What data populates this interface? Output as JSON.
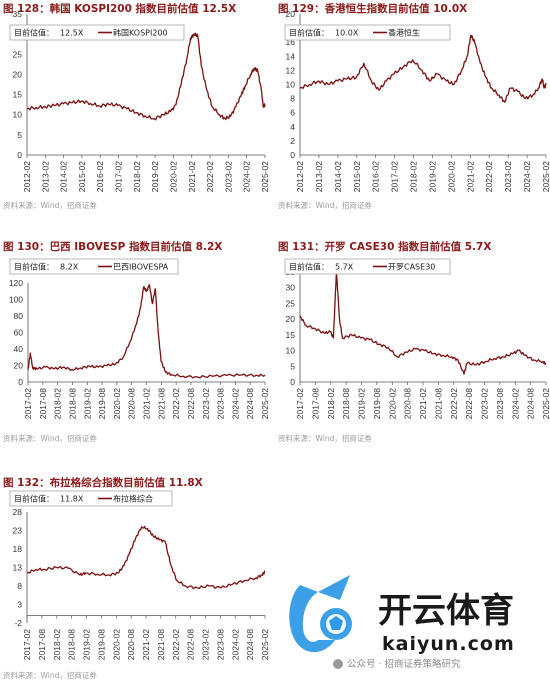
{
  "chart_data": [
    {
      "type": "line",
      "title": "图 128：韩国 KOSPI200 指数目前估值 12.5X",
      "source": "资料来源：Wind，招商证券",
      "annotation": {
        "label": "目前估值：",
        "value": "12.5X"
      },
      "series": [
        {
          "name": "韩国KOSPI200",
          "color": "#7b1010",
          "points": [
            [
              2012.0,
              11.5
            ],
            [
              2012.5,
              11.8
            ],
            [
              2013.0,
              12.0
            ],
            [
              2013.5,
              12.3
            ],
            [
              2014.0,
              12.7
            ],
            [
              2014.5,
              13.0
            ],
            [
              2015.0,
              13.4
            ],
            [
              2015.5,
              12.8
            ],
            [
              2016.0,
              12.2
            ],
            [
              2016.5,
              12.6
            ],
            [
              2017.0,
              12.3
            ],
            [
              2017.5,
              11.5
            ],
            [
              2018.0,
              10.5
            ],
            [
              2018.5,
              9.7
            ],
            [
              2019.0,
              9.0
            ],
            [
              2019.5,
              10.0
            ],
            [
              2019.9,
              10.8
            ],
            [
              2020.2,
              12.5
            ],
            [
              2020.5,
              18.0
            ],
            [
              2020.8,
              24.0
            ],
            [
              2021.0,
              29.0
            ],
            [
              2021.2,
              30.0
            ],
            [
              2021.4,
              29.5
            ],
            [
              2021.6,
              22.0
            ],
            [
              2021.9,
              16.0
            ],
            [
              2022.2,
              12.0
            ],
            [
              2022.6,
              10.0
            ],
            [
              2022.9,
              9.0
            ],
            [
              2023.2,
              9.6
            ],
            [
              2023.5,
              12.0
            ],
            [
              2023.8,
              15.0
            ],
            [
              2024.0,
              17.0
            ],
            [
              2024.3,
              20.0
            ],
            [
              2024.5,
              21.5
            ],
            [
              2024.7,
              21.0
            ],
            [
              2024.9,
              16.0
            ],
            [
              2025.0,
              12.0
            ],
            [
              2025.1,
              12.5
            ]
          ]
        }
      ],
      "x_ticks": [
        "2012-02",
        "2013-02",
        "2014-02",
        "2015-02",
        "2016-02",
        "2017-02",
        "2018-02",
        "2019-02",
        "2020-02",
        "2021-02",
        "2022-02",
        "2023-02",
        "2024-02",
        "2025-02"
      ],
      "xlim": [
        2012.0,
        2025.1
      ],
      "ylim": [
        0,
        35
      ],
      "y_ticks": [
        0,
        5,
        10,
        15,
        20,
        25,
        30,
        35
      ]
    },
    {
      "type": "line",
      "title": "图 129：香港恒生指数目前估值 10.0X",
      "source": "资料来源：Wind，招商证券",
      "annotation": {
        "label": "目前估值：",
        "value": "10.0X"
      },
      "series": [
        {
          "name": "香港恒生",
          "color": "#7b1010",
          "points": [
            [
              2012.0,
              9.5
            ],
            [
              2012.5,
              10.0
            ],
            [
              2013.0,
              10.5
            ],
            [
              2013.5,
              10.0
            ],
            [
              2014.0,
              10.5
            ],
            [
              2014.5,
              10.8
            ],
            [
              2015.0,
              11.0
            ],
            [
              2015.4,
              13.0
            ],
            [
              2015.8,
              10.5
            ],
            [
              2016.2,
              9.2
            ],
            [
              2016.6,
              10.5
            ],
            [
              2017.0,
              11.5
            ],
            [
              2017.5,
              12.5
            ],
            [
              2018.0,
              13.5
            ],
            [
              2018.5,
              12.0
            ],
            [
              2018.9,
              10.5
            ],
            [
              2019.3,
              11.5
            ],
            [
              2019.8,
              10.5
            ],
            [
              2020.2,
              10.0
            ],
            [
              2020.6,
              12.0
            ],
            [
              2020.9,
              14.0
            ],
            [
              2021.1,
              17.0
            ],
            [
              2021.3,
              16.0
            ],
            [
              2021.6,
              13.0
            ],
            [
              2021.9,
              11.0
            ],
            [
              2022.2,
              9.5
            ],
            [
              2022.6,
              8.5
            ],
            [
              2022.9,
              7.5
            ],
            [
              2023.2,
              9.5
            ],
            [
              2023.6,
              9.0
            ],
            [
              2024.0,
              8.0
            ],
            [
              2024.4,
              8.5
            ],
            [
              2024.7,
              9.5
            ],
            [
              2024.9,
              10.8
            ],
            [
              2025.0,
              9.5
            ],
            [
              2025.1,
              10.0
            ]
          ]
        }
      ],
      "x_ticks": [
        "2012-02",
        "2013-02",
        "2014-02",
        "2015-02",
        "2016-02",
        "2017-02",
        "2018-02",
        "2019-02",
        "2020-02",
        "2021-02",
        "2022-02",
        "2023-02",
        "2024-02",
        "2025-02"
      ],
      "xlim": [
        2012.0,
        2025.1
      ],
      "ylim": [
        0,
        20
      ],
      "y_ticks": [
        0,
        2,
        4,
        6,
        8,
        10,
        12,
        14,
        16,
        18,
        20
      ]
    },
    {
      "type": "line",
      "title": "图 130：巴西 IBOVESP 指数目前估值 8.2X",
      "source": "资料来源：Wind，招商证券",
      "annotation": {
        "label": "目前估值：",
        "value": "8.2X"
      },
      "series": [
        {
          "name": "巴西IBOVESPA",
          "color": "#7b1010",
          "points": [
            [
              2017.0,
              15.0
            ],
            [
              2017.08,
              35.0
            ],
            [
              2017.16,
              17.0
            ],
            [
              2017.3,
              16.0
            ],
            [
              2017.6,
              18.0
            ],
            [
              2017.9,
              16.0
            ],
            [
              2018.2,
              18.0
            ],
            [
              2018.5,
              15.0
            ],
            [
              2018.8,
              17.0
            ],
            [
              2019.1,
              19.0
            ],
            [
              2019.4,
              18.0
            ],
            [
              2019.7,
              20.0
            ],
            [
              2020.0,
              22.0
            ],
            [
              2020.25,
              30.0
            ],
            [
              2020.5,
              50.0
            ],
            [
              2020.7,
              70.0
            ],
            [
              2020.85,
              90.0
            ],
            [
              2020.95,
              115.0
            ],
            [
              2021.05,
              110.0
            ],
            [
              2021.15,
              118.0
            ],
            [
              2021.25,
              95.0
            ],
            [
              2021.35,
              113.0
            ],
            [
              2021.45,
              60.0
            ],
            [
              2021.55,
              25.0
            ],
            [
              2021.7,
              12.0
            ],
            [
              2021.9,
              9.0
            ],
            [
              2022.3,
              7.0
            ],
            [
              2022.8,
              6.0
            ],
            [
              2023.3,
              7.0
            ],
            [
              2023.8,
              8.0
            ],
            [
              2024.3,
              8.5
            ],
            [
              2024.8,
              8.0
            ],
            [
              2025.1,
              8.2
            ]
          ]
        }
      ],
      "x_ticks": [
        "2017-02",
        "2017-08",
        "2018-02",
        "2018-08",
        "2019-02",
        "2019-08",
        "2020-02",
        "2020-08",
        "2021-02",
        "2021-08",
        "2022-02",
        "2022-08",
        "2023-02",
        "2023-08",
        "2024-02",
        "2024-08",
        "2025-02"
      ],
      "xlim": [
        2017.0,
        2025.1
      ],
      "ylim": [
        0,
        120
      ],
      "y_ticks": [
        0,
        20,
        40,
        60,
        80,
        100,
        120
      ]
    },
    {
      "type": "line",
      "title": "图 131：开罗 CASE30 指数目前估值 5.7X",
      "source": "资料来源：Wind，招商证券",
      "annotation": {
        "label": "目前估值：",
        "value": "5.7X"
      },
      "series": [
        {
          "name": "开罗CASE30",
          "color": "#7b1010",
          "points": [
            [
              2017.0,
              21.0
            ],
            [
              2017.2,
              18.0
            ],
            [
              2017.5,
              17.0
            ],
            [
              2017.8,
              15.5
            ],
            [
              2018.0,
              16.0
            ],
            [
              2018.1,
              14.0
            ],
            [
              2018.2,
              35.0
            ],
            [
              2018.3,
              20.0
            ],
            [
              2018.4,
              14.0
            ],
            [
              2018.7,
              15.0
            ],
            [
              2019.0,
              14.0
            ],
            [
              2019.3,
              13.5
            ],
            [
              2019.6,
              12.0
            ],
            [
              2019.9,
              11.0
            ],
            [
              2020.2,
              8.0
            ],
            [
              2020.5,
              9.5
            ],
            [
              2020.8,
              10.5
            ],
            [
              2021.1,
              10.0
            ],
            [
              2021.4,
              9.0
            ],
            [
              2021.7,
              8.5
            ],
            [
              2022.0,
              8.0
            ],
            [
              2022.2,
              7.0
            ],
            [
              2022.4,
              2.5
            ],
            [
              2022.5,
              6.0
            ],
            [
              2022.8,
              5.5
            ],
            [
              2023.1,
              6.5
            ],
            [
              2023.4,
              7.5
            ],
            [
              2023.7,
              8.0
            ],
            [
              2024.0,
              9.0
            ],
            [
              2024.2,
              10.0
            ],
            [
              2024.4,
              8.5
            ],
            [
              2024.7,
              7.0
            ],
            [
              2025.0,
              6.5
            ],
            [
              2025.1,
              5.7
            ]
          ]
        }
      ],
      "x_ticks": [
        "2017-02",
        "2017-08",
        "2018-02",
        "2018-08",
        "2019-02",
        "2019-08",
        "2020-02",
        "2020-08",
        "2021-02",
        "2021-08",
        "2022-02",
        "2022-08",
        "2023-02",
        "2023-08",
        "2024-02",
        "2024-08",
        "2025-02"
      ],
      "xlim": [
        2017.0,
        2025.1
      ],
      "ylim": [
        0,
        35
      ],
      "y_ticks": [
        0,
        5,
        10,
        15,
        20,
        25,
        30,
        35
      ]
    },
    {
      "type": "line",
      "title": "图 132：布拉格综合指数目前估值 11.8X",
      "source": "资料来源：Wind，招商证券",
      "annotation": {
        "label": "目前估值：",
        "value": "11.8X"
      },
      "series": [
        {
          "name": "布拉格综合",
          "color": "#7b1010",
          "points": [
            [
              2017.0,
              11.5
            ],
            [
              2017.3,
              12.5
            ],
            [
              2017.6,
              12.5
            ],
            [
              2018.0,
              13.0
            ],
            [
              2018.4,
              12.8
            ],
            [
              2018.8,
              11.0
            ],
            [
              2019.0,
              11.5
            ],
            [
              2019.4,
              11.2
            ],
            [
              2019.8,
              11.0
            ],
            [
              2020.1,
              11.5
            ],
            [
              2020.3,
              13.5
            ],
            [
              2020.5,
              17.0
            ],
            [
              2020.7,
              21.0
            ],
            [
              2020.9,
              24.0
            ],
            [
              2021.1,
              23.5
            ],
            [
              2021.3,
              21.5
            ],
            [
              2021.5,
              20.5
            ],
            [
              2021.7,
              20.0
            ],
            [
              2021.9,
              13.5
            ],
            [
              2022.1,
              9.5
            ],
            [
              2022.4,
              8.0
            ],
            [
              2022.8,
              7.5
            ],
            [
              2023.2,
              8.0
            ],
            [
              2023.6,
              7.5
            ],
            [
              2024.0,
              8.5
            ],
            [
              2024.4,
              9.5
            ],
            [
              2024.8,
              10.2
            ],
            [
              2025.0,
              11.0
            ],
            [
              2025.1,
              11.8
            ]
          ]
        }
      ],
      "x_ticks": [
        "2017-02",
        "2017-08",
        "2018-02",
        "2018-08",
        "2019-02",
        "2019-08",
        "2020-02",
        "2020-08",
        "2021-02",
        "2021-08",
        "2022-02",
        "2022-08",
        "2023-02",
        "2023-08",
        "2024-02",
        "2024-08",
        "2025-02"
      ],
      "xlim": [
        2017.0,
        2025.1
      ],
      "ylim": [
        -2,
        28
      ],
      "y_ticks": [
        -2,
        3,
        8,
        13,
        18,
        23,
        28
      ]
    }
  ],
  "watermark": {
    "brand": "开云体育",
    "url": "kaiyun.com",
    "wechat": "公众号 · 招商证券策略研究"
  }
}
